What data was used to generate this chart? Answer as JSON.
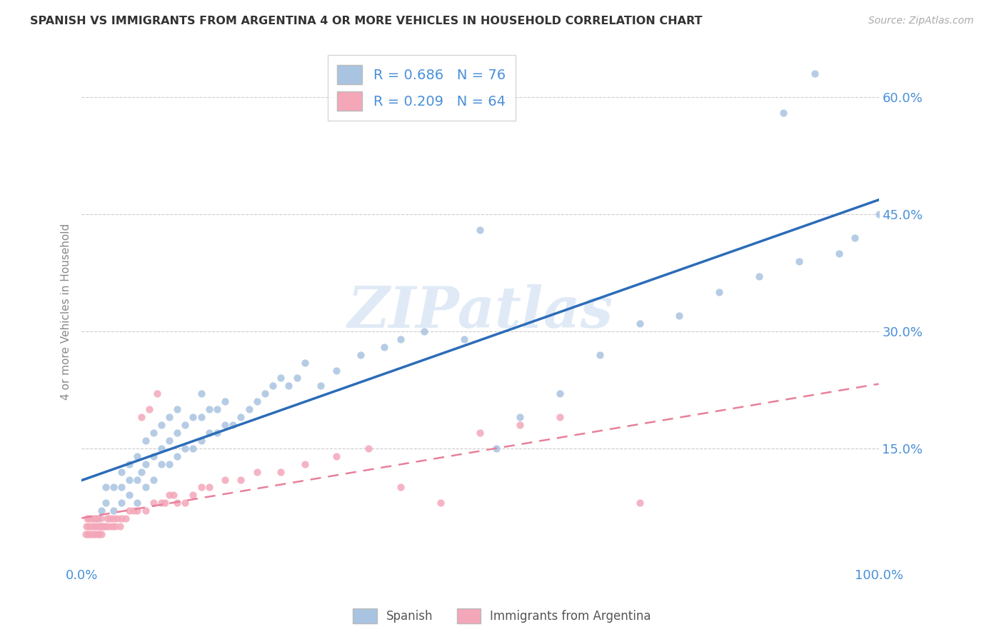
{
  "title": "SPANISH VS IMMIGRANTS FROM ARGENTINA 4 OR MORE VEHICLES IN HOUSEHOLD CORRELATION CHART",
  "source": "Source: ZipAtlas.com",
  "ylabel": "4 or more Vehicles in Household",
  "legend_label_1": "Spanish",
  "legend_label_2": "Immigrants from Argentina",
  "R1": 0.686,
  "N1": 76,
  "R2": 0.209,
  "N2": 64,
  "xlim": [
    0,
    1.0
  ],
  "ylim": [
    0,
    0.65
  ],
  "ytick_vals": [
    0.0,
    0.15,
    0.3,
    0.45,
    0.6
  ],
  "ytick_labels": [
    "",
    "15.0%",
    "30.0%",
    "45.0%",
    "60.0%"
  ],
  "xtick_vals": [
    0.0,
    1.0
  ],
  "xtick_labels": [
    "0.0%",
    "100.0%"
  ],
  "watermark": "ZIPatlas",
  "color_spanish": "#a8c4e0",
  "color_argentina": "#f4a7b9",
  "line_color_spanish": "#2b6cb8",
  "line_color_argentina": "#e8809a",
  "background_color": "#ffffff",
  "spanish_x": [
    0.02,
    0.025,
    0.03,
    0.03,
    0.04,
    0.04,
    0.05,
    0.05,
    0.05,
    0.06,
    0.06,
    0.06,
    0.07,
    0.07,
    0.07,
    0.075,
    0.08,
    0.08,
    0.08,
    0.09,
    0.09,
    0.09,
    0.1,
    0.1,
    0.1,
    0.11,
    0.11,
    0.11,
    0.12,
    0.12,
    0.12,
    0.13,
    0.13,
    0.14,
    0.14,
    0.15,
    0.15,
    0.15,
    0.16,
    0.16,
    0.17,
    0.17,
    0.18,
    0.18,
    0.19,
    0.2,
    0.21,
    0.22,
    0.23,
    0.24,
    0.25,
    0.26,
    0.27,
    0.28,
    0.3,
    0.32,
    0.35,
    0.38,
    0.4,
    0.43,
    0.48,
    0.5,
    0.52,
    0.55,
    0.6,
    0.65,
    0.7,
    0.75,
    0.8,
    0.85,
    0.88,
    0.9,
    0.92,
    0.95,
    0.97,
    1.0
  ],
  "spanish_y": [
    0.06,
    0.07,
    0.08,
    0.1,
    0.07,
    0.1,
    0.08,
    0.1,
    0.12,
    0.09,
    0.11,
    0.13,
    0.08,
    0.11,
    0.14,
    0.12,
    0.1,
    0.13,
    0.16,
    0.11,
    0.14,
    0.17,
    0.13,
    0.15,
    0.18,
    0.13,
    0.16,
    0.19,
    0.14,
    0.17,
    0.2,
    0.15,
    0.18,
    0.15,
    0.19,
    0.16,
    0.19,
    0.22,
    0.17,
    0.2,
    0.17,
    0.2,
    0.18,
    0.21,
    0.18,
    0.19,
    0.2,
    0.21,
    0.22,
    0.23,
    0.24,
    0.23,
    0.24,
    0.26,
    0.23,
    0.25,
    0.27,
    0.28,
    0.29,
    0.3,
    0.29,
    0.43,
    0.15,
    0.19,
    0.22,
    0.27,
    0.31,
    0.32,
    0.35,
    0.37,
    0.58,
    0.39,
    0.63,
    0.4,
    0.42,
    0.45
  ],
  "argentina_x": [
    0.005,
    0.006,
    0.007,
    0.008,
    0.009,
    0.01,
    0.011,
    0.012,
    0.013,
    0.014,
    0.015,
    0.016,
    0.017,
    0.018,
    0.019,
    0.02,
    0.021,
    0.022,
    0.023,
    0.024,
    0.025,
    0.026,
    0.028,
    0.03,
    0.032,
    0.034,
    0.036,
    0.038,
    0.04,
    0.042,
    0.045,
    0.048,
    0.05,
    0.055,
    0.06,
    0.065,
    0.07,
    0.075,
    0.08,
    0.085,
    0.09,
    0.095,
    0.1,
    0.105,
    0.11,
    0.115,
    0.12,
    0.13,
    0.14,
    0.15,
    0.16,
    0.18,
    0.2,
    0.22,
    0.25,
    0.28,
    0.32,
    0.36,
    0.4,
    0.45,
    0.5,
    0.55,
    0.6,
    0.7
  ],
  "argentina_y": [
    0.04,
    0.05,
    0.06,
    0.04,
    0.05,
    0.06,
    0.04,
    0.05,
    0.06,
    0.04,
    0.05,
    0.06,
    0.04,
    0.05,
    0.06,
    0.04,
    0.05,
    0.04,
    0.05,
    0.06,
    0.04,
    0.05,
    0.05,
    0.05,
    0.06,
    0.05,
    0.06,
    0.05,
    0.06,
    0.05,
    0.06,
    0.05,
    0.06,
    0.06,
    0.07,
    0.07,
    0.07,
    0.19,
    0.07,
    0.2,
    0.08,
    0.22,
    0.08,
    0.08,
    0.09,
    0.09,
    0.08,
    0.08,
    0.09,
    0.1,
    0.1,
    0.11,
    0.11,
    0.12,
    0.12,
    0.13,
    0.14,
    0.15,
    0.1,
    0.08,
    0.17,
    0.18,
    0.19,
    0.08
  ]
}
